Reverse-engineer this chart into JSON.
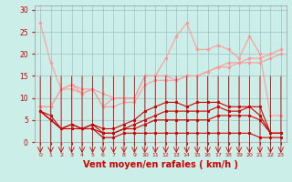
{
  "background_color": "#cceee8",
  "grid_color": "#aacccc",
  "xlabel": "Vent moyen/en rafales ( km/h )",
  "xlim": [
    -0.5,
    23.5
  ],
  "ylim": [
    0,
    31
  ],
  "yticks": [
    0,
    5,
    10,
    15,
    20,
    25,
    30
  ],
  "xticks": [
    0,
    1,
    2,
    3,
    4,
    5,
    6,
    7,
    8,
    9,
    10,
    11,
    12,
    13,
    14,
    15,
    16,
    17,
    18,
    19,
    20,
    21,
    22,
    23
  ],
  "light_color": "#ff9999",
  "dark_color": "#cc0000",
  "tick_color": "#cc0000",
  "xlabel_color": "#cc0000",
  "lines_light": [
    [
      27,
      18,
      12,
      12,
      11,
      12,
      8,
      10,
      10,
      10,
      15,
      15,
      19,
      24,
      27,
      21,
      21,
      22,
      21,
      19,
      24,
      20,
      6,
      6
    ],
    [
      8,
      8,
      12,
      13,
      12,
      12,
      11,
      10,
      10,
      10,
      15,
      15,
      15,
      14,
      15,
      15,
      16,
      17,
      18,
      18,
      19,
      19,
      20,
      21
    ],
    [
      8,
      8,
      12,
      13,
      11,
      12,
      8,
      8,
      9,
      9,
      13,
      14,
      14,
      14,
      15,
      15,
      16,
      17,
      17,
      18,
      18,
      18,
      19,
      20
    ]
  ],
  "lines_dark": [
    [
      7,
      6,
      3,
      4,
      3,
      4,
      3,
      3,
      4,
      5,
      7,
      8,
      9,
      9,
      8,
      9,
      9,
      9,
      8,
      8,
      8,
      8,
      2,
      2
    ],
    [
      7,
      5,
      3,
      4,
      3,
      4,
      2,
      2,
      3,
      4,
      5,
      6,
      7,
      7,
      7,
      7,
      7,
      8,
      7,
      7,
      8,
      6,
      2,
      2
    ],
    [
      7,
      5,
      3,
      3,
      3,
      3,
      2,
      2,
      3,
      3,
      4,
      5,
      5,
      5,
      5,
      5,
      5,
      6,
      6,
      6,
      6,
      5,
      2,
      2
    ],
    [
      7,
      5,
      3,
      3,
      3,
      3,
      1,
      1,
      2,
      2,
      2,
      2,
      2,
      2,
      2,
      2,
      2,
      2,
      2,
      2,
      2,
      1,
      1,
      1
    ]
  ]
}
